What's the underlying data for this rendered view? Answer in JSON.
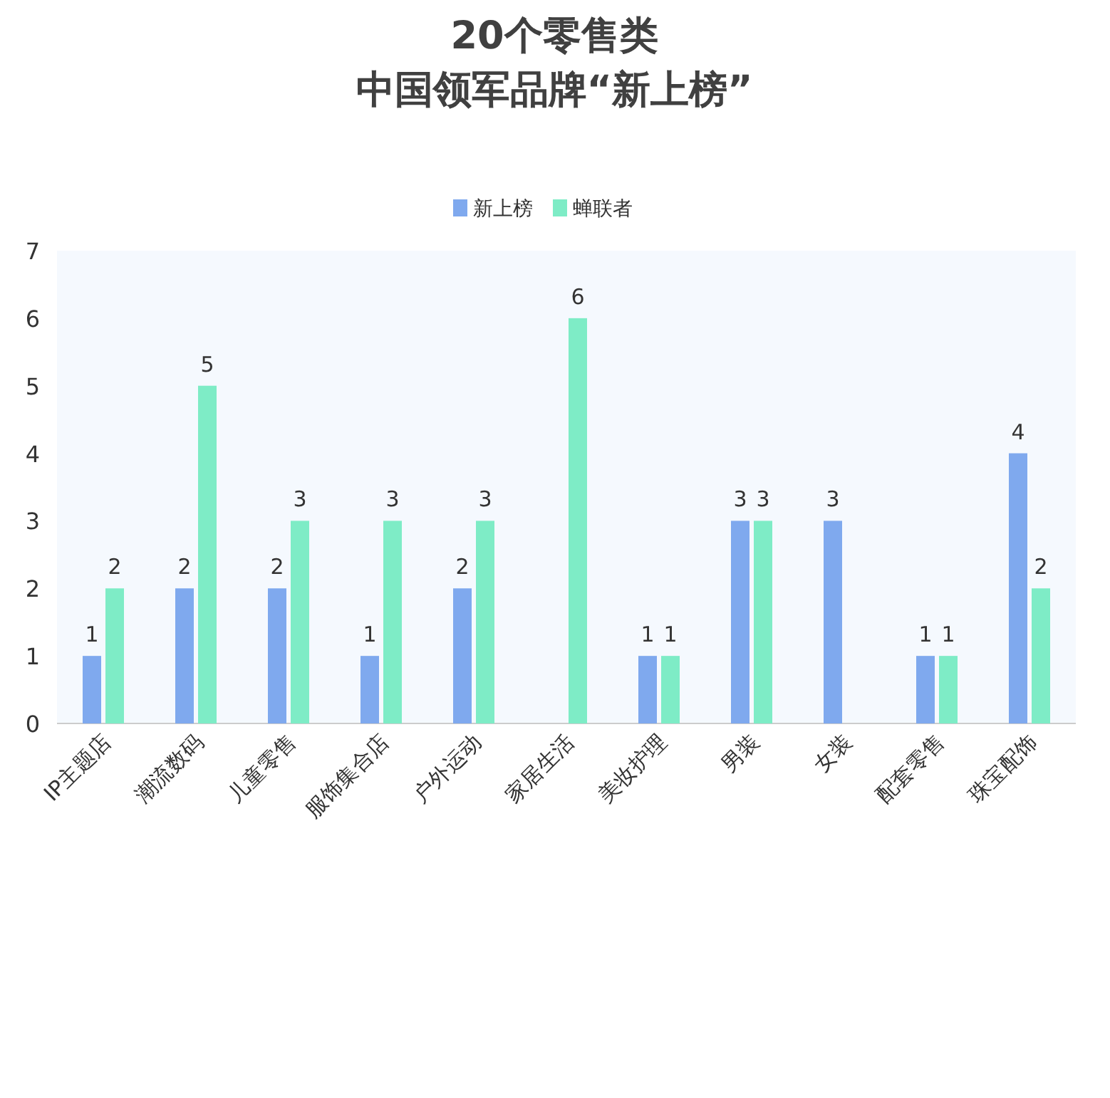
{
  "chart_data": {
    "type": "bar",
    "title": "20个零售类",
    "subtitle": "中国领军品牌“新上榜”",
    "categories": [
      "IP主题店",
      "潮流数码",
      "儿童零售",
      "服饰集合店",
      "户外运动",
      "家居生活",
      "美妆护理",
      "男装",
      "女装",
      "配套零售",
      "珠宝配饰"
    ],
    "series": [
      {
        "name": "新上榜",
        "color": "#7fa9ee",
        "values": [
          1,
          2,
          2,
          1,
          2,
          null,
          1,
          3,
          3,
          1,
          4
        ]
      },
      {
        "name": "蝉联者",
        "color": "#7eecc6",
        "values": [
          2,
          5,
          3,
          3,
          3,
          6,
          1,
          3,
          null,
          1,
          2
        ]
      }
    ],
    "ylim": [
      0,
      7
    ],
    "yticks": [
      0,
      1,
      2,
      3,
      4,
      5,
      6,
      7
    ],
    "data_labels": true,
    "legend": "top",
    "grid": false
  }
}
